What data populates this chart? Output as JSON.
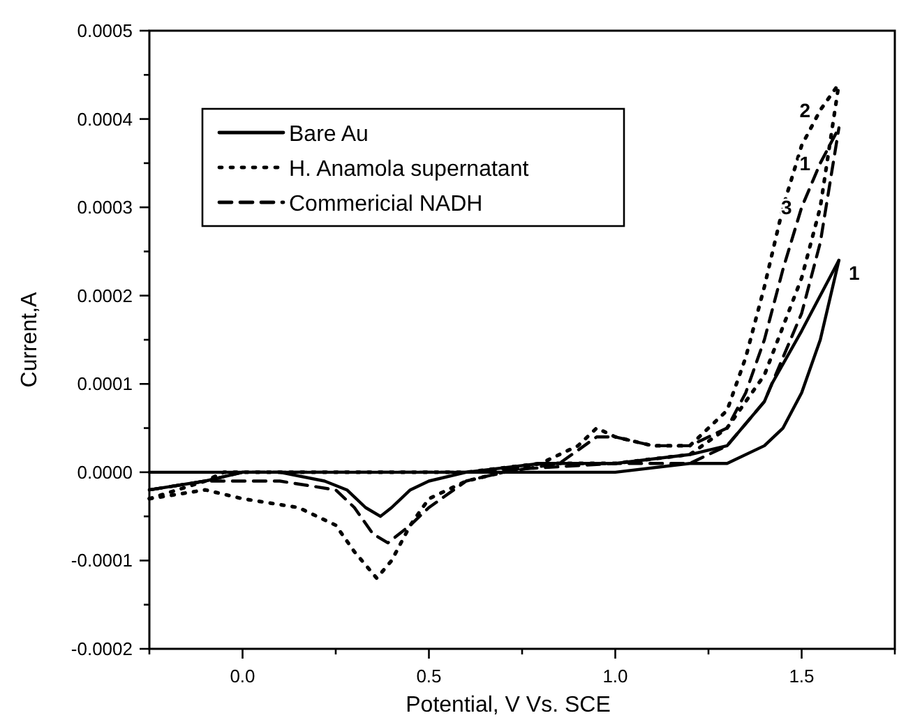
{
  "chart_data": {
    "type": "line",
    "xlabel": "Potential, V Vs. SCE",
    "ylabel": "Current,A",
    "xlim": [
      -0.25,
      1.75
    ],
    "ylim": [
      -0.0002,
      0.0005
    ],
    "xticks": [
      {
        "value": -0.25,
        "label": null
      },
      {
        "value": 0,
        "label": "0.0"
      },
      {
        "value": 0.25,
        "label": null
      },
      {
        "value": 0.5,
        "label": "0.5"
      },
      {
        "value": 0.75,
        "label": null
      },
      {
        "value": 1,
        "label": "1.0"
      },
      {
        "value": 1.25,
        "label": null
      },
      {
        "value": 1.5,
        "label": "1.5"
      },
      {
        "value": 1.75,
        "label": null
      }
    ],
    "yticks": [
      {
        "value": -0.0002,
        "label": "-0.0002"
      },
      {
        "value": -0.00015,
        "label": null
      },
      {
        "value": -0.0001,
        "label": "-0.0001"
      },
      {
        "value": -5e-05,
        "label": null
      },
      {
        "value": 0,
        "label": "0.0000"
      },
      {
        "value": 5e-05,
        "label": null
      },
      {
        "value": 0.0001,
        "label": "0.0001"
      },
      {
        "value": 0.00015,
        "label": null
      },
      {
        "value": 0.0002,
        "label": "0.0002"
      },
      {
        "value": 0.00025,
        "label": null
      },
      {
        "value": 0.0003,
        "label": "0.0003"
      },
      {
        "value": 0.00035,
        "label": null
      },
      {
        "value": 0.0004,
        "label": "0.0004"
      },
      {
        "value": 0.00045,
        "label": null
      },
      {
        "value": 0.0005,
        "label": "0.0005"
      }
    ],
    "grid": false,
    "legend": "top left",
    "marker": "none",
    "series": [
      {
        "name": "Bare Au",
        "color": "#000000",
        "line_style": "solid",
        "x": [
          -0.25,
          0,
          0.5,
          0.8,
          1,
          1.2,
          1.3,
          1.4,
          1.45,
          1.5,
          1.55,
          1.6
        ],
        "values": [
          0,
          0,
          0,
          0,
          0,
          1e-05,
          1e-05,
          3e-05,
          5e-05,
          9e-05,
          0.00015,
          0.00024
        ]
      },
      {
        "color": "#000000",
        "line_style": "solid",
        "x": [
          -0.25,
          -0.1,
          0,
          0.1,
          0.22,
          0.28,
          0.33,
          0.37,
          0.4,
          0.45,
          0.5,
          0.6,
          0.8,
          1,
          1.2,
          1.3,
          1.4,
          1.42,
          1.5,
          1.6
        ],
        "values": [
          -2e-05,
          -1e-05,
          0,
          0,
          -1e-05,
          -2e-05,
          -4e-05,
          -5e-05,
          -4e-05,
          -2e-05,
          -1e-05,
          0,
          1e-05,
          1e-05,
          2e-05,
          3e-05,
          8e-05,
          0.0001,
          0.00016,
          0.00024
        ]
      },
      {
        "name": "H. Anamola supernatant",
        "color": "#000000",
        "line_style": "dotted",
        "x": [
          -0.25,
          -0.1,
          -0.05,
          0.6,
          0.8,
          1,
          1.2,
          1.3,
          1.4,
          1.5,
          1.55,
          1.6
        ],
        "values": [
          -3e-05,
          -1e-05,
          0,
          0,
          1e-05,
          1e-05,
          2e-05,
          5e-05,
          0.00011,
          0.00022,
          0.0003,
          0.00044
        ]
      },
      {
        "color": "#000000",
        "line_style": "dotted",
        "x": [
          -0.25,
          -0.1,
          0,
          0.15,
          0.25,
          0.3,
          0.36,
          0.4,
          0.45,
          0.5,
          0.6,
          0.8,
          0.9,
          0.95,
          1,
          1.1,
          1.2,
          1.3,
          1.35,
          1.4,
          1.45,
          1.5,
          1.55,
          1.6
        ],
        "values": [
          -3e-05,
          -2e-05,
          -3e-05,
          -4e-05,
          -6e-05,
          -9e-05,
          -0.00012,
          -0.0001,
          -6e-05,
          -3e-05,
          -1e-05,
          1e-05,
          3e-05,
          5e-05,
          4e-05,
          3e-05,
          3e-05,
          7e-05,
          0.00013,
          0.00021,
          0.0003,
          0.00037,
          0.00041,
          0.00044
        ]
      },
      {
        "name": "Commericial NADH",
        "color": "#000000",
        "line_style": "dashed",
        "x": [
          -0.25,
          -0.1,
          0,
          0.6,
          1,
          1.2,
          1.3,
          1.4,
          1.5,
          1.55,
          1.6
        ],
        "values": [
          -2e-05,
          -1e-05,
          0,
          0,
          1e-05,
          1e-05,
          3e-05,
          8e-05,
          0.00018,
          0.00026,
          0.00039
        ]
      },
      {
        "color": "#000000",
        "line_style": "dashed",
        "x": [
          -0.25,
          -0.1,
          0,
          0.1,
          0.25,
          0.3,
          0.35,
          0.39,
          0.45,
          0.5,
          0.6,
          0.7,
          0.85,
          0.95,
          1,
          1.1,
          1.2,
          1.3,
          1.35,
          1.4,
          1.45,
          1.5,
          1.55,
          1.6
        ],
        "values": [
          -2e-05,
          -1e-05,
          -1e-05,
          -1e-05,
          -2e-05,
          -4e-05,
          -7e-05,
          -8e-05,
          -6e-05,
          -4e-05,
          -1e-05,
          0,
          1e-05,
          4e-05,
          4e-05,
          3e-05,
          3e-05,
          5e-05,
          9e-05,
          0.00015,
          0.00023,
          0.0003,
          0.00035,
          0.00039
        ]
      }
    ],
    "annotations": [
      {
        "text": "2",
        "x": 1.55,
        "y": 0.00041
      },
      {
        "text": "1",
        "x": 1.55,
        "y": 0.00035
      },
      {
        "text": "3",
        "x": 1.5,
        "y": 0.0003
      },
      {
        "text": "1",
        "x": 1.6,
        "y": 0.00024
      }
    ]
  }
}
